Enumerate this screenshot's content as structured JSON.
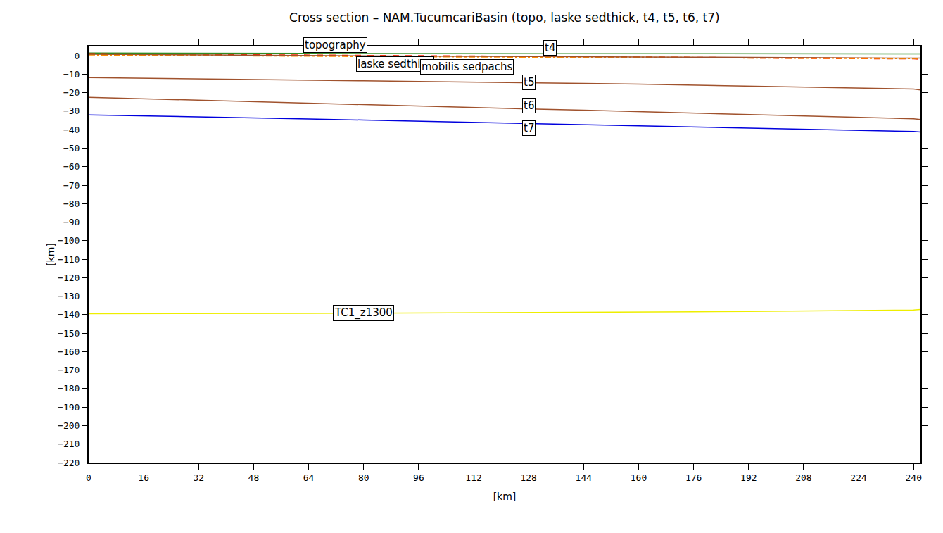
{
  "chart_data": {
    "type": "line",
    "title": "Cross section – NAM.TucumcariBasin (topo, laske sedthick, t4, t5, t6, t7)",
    "x_label": "[km]",
    "y_label": "[km]",
    "x": [
      0,
      16,
      32,
      48,
      64,
      80,
      96,
      112,
      128,
      144,
      160,
      176,
      192,
      208,
      224,
      240,
      242
    ],
    "xlim": [
      0,
      242
    ],
    "xticks": [
      0,
      16,
      32,
      48,
      64,
      80,
      96,
      112,
      128,
      144,
      160,
      176,
      192,
      208,
      224,
      240
    ],
    "ylim": [
      -220,
      5
    ],
    "yticks": [
      -220,
      -210,
      -200,
      -190,
      -180,
      -170,
      -160,
      -150,
      -140,
      -130,
      -120,
      -110,
      -100,
      -90,
      -80,
      -70,
      -60,
      -50,
      -40,
      -30,
      -20,
      -10,
      0
    ],
    "grid": false,
    "series": [
      {
        "name": "topography",
        "color": "#2e8b22",
        "line_style": "solid",
        "values": [
          1.5,
          1.5,
          1.4,
          1.3,
          1.3,
          1.2,
          1.2,
          1.2,
          1.1,
          1.1,
          1.1,
          1.0,
          1.0,
          1.0,
          1.0,
          1.0,
          1.0
        ]
      },
      {
        "name": "laske sedthick",
        "color": "#ff2000",
        "line_style": "dash",
        "values": [
          1.0,
          0.8,
          0.6,
          0.4,
          0.2,
          0.0,
          -0.2,
          -0.3,
          -0.5,
          -0.7,
          -0.8,
          -1.0,
          -1.2,
          -1.3,
          -1.5,
          -1.6,
          -1.8
        ]
      },
      {
        "name": "mobilis sedpachs",
        "color": "#ff8c00",
        "line_style": "dashdot",
        "values": [
          0.5,
          0.3,
          0.1,
          -0.1,
          -0.2,
          -0.4,
          -0.5,
          -0.6,
          -0.7,
          -0.8,
          -0.9,
          -1.0,
          -1.1,
          -1.2,
          -1.3,
          -1.4,
          -1.5
        ]
      },
      {
        "name": "t4",
        "color": "#a0522d",
        "line_style": "solid",
        "values": [
          0.8,
          0.6,
          0.4,
          0.2,
          0.0,
          -0.1,
          -0.2,
          -0.3,
          -0.5,
          -0.6,
          -0.7,
          -0.8,
          -0.9,
          -1.0,
          -1.1,
          -1.2,
          -1.3
        ]
      },
      {
        "name": "t5",
        "color": "#a0522d",
        "line_style": "solid",
        "values": [
          -11.8,
          -12.2,
          -12.6,
          -13.0,
          -13.3,
          -13.6,
          -13.9,
          -14.2,
          -14.6,
          -15.0,
          -15.4,
          -15.9,
          -16.4,
          -16.9,
          -17.4,
          -18.0,
          -18.5
        ]
      },
      {
        "name": "t6",
        "color": "#a0522d",
        "line_style": "solid",
        "values": [
          -22.5,
          -23.3,
          -24.2,
          -25.0,
          -25.8,
          -26.5,
          -27.2,
          -28.0,
          -28.8,
          -29.5,
          -30.3,
          -31.0,
          -31.8,
          -32.6,
          -33.3,
          -34.1,
          -34.5
        ]
      },
      {
        "name": "t7",
        "color": "#0000dd",
        "line_style": "solid",
        "values": [
          -32.0,
          -32.5,
          -33.1,
          -33.6,
          -34.2,
          -34.8,
          -35.4,
          -36.0,
          -36.6,
          -37.2,
          -37.9,
          -38.5,
          -39.2,
          -39.8,
          -40.4,
          -41.0,
          -41.3
        ]
      },
      {
        "name": "TC1_z1300",
        "color": "#eeee00",
        "line_style": "solid",
        "values": [
          -139.5,
          -139.5,
          -139.5,
          -139.5,
          -139.3,
          -139.2,
          -139.1,
          -139.0,
          -138.9,
          -138.8,
          -138.6,
          -138.4,
          -138.2,
          -138.0,
          -137.8,
          -137.5,
          -137.2
        ]
      }
    ]
  }
}
